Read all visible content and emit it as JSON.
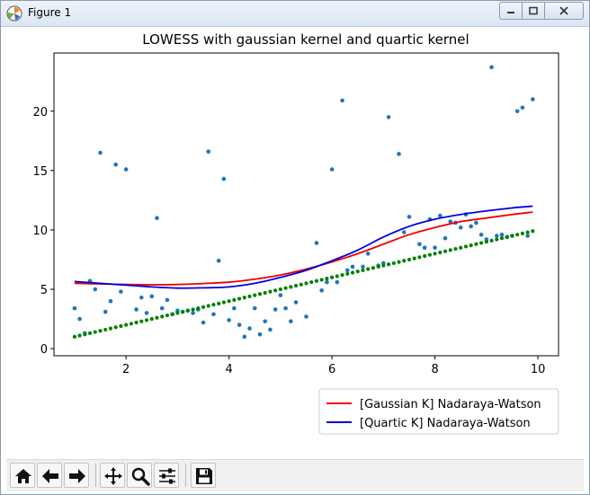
{
  "window": {
    "title": "Figure 1"
  },
  "toolbar": {
    "buttons": [
      {
        "name": "home-icon"
      },
      {
        "name": "back-arrow-icon"
      },
      {
        "name": "forward-arrow-icon"
      },
      {
        "name": "pan-icon"
      },
      {
        "name": "zoom-icon"
      },
      {
        "name": "subplots-config-icon"
      },
      {
        "name": "save-icon"
      }
    ]
  },
  "chart_data": {
    "type": "scatter",
    "title": "LOWESS with gaussian kernel and quartic kernel",
    "xlim": [
      0.6,
      10.4
    ],
    "ylim": [
      -0.6,
      24.9
    ],
    "xticks": [
      2,
      4,
      6,
      8,
      10
    ],
    "yticks": [
      0,
      5,
      10,
      15,
      20
    ],
    "grid": false,
    "legend_placement": "lower-right",
    "colors": {
      "scatter": "#1f77b4",
      "gaussian": "#ee0000",
      "quartic": "#0000dd",
      "linear": "#008000"
    },
    "scatter": [
      [
        1.0,
        3.4
      ],
      [
        1.1,
        2.5
      ],
      [
        1.2,
        1.3
      ],
      [
        1.3,
        5.7
      ],
      [
        1.4,
        5.0
      ],
      [
        1.5,
        16.5
      ],
      [
        1.6,
        3.1
      ],
      [
        1.7,
        4.0
      ],
      [
        1.8,
        15.5
      ],
      [
        1.9,
        4.8
      ],
      [
        2.0,
        15.1
      ],
      [
        2.2,
        3.3
      ],
      [
        2.3,
        4.3
      ],
      [
        2.4,
        3.0
      ],
      [
        2.5,
        4.4
      ],
      [
        2.6,
        11.0
      ],
      [
        2.7,
        3.4
      ],
      [
        2.8,
        4.1
      ],
      [
        2.9,
        2.9
      ],
      [
        3.0,
        3.2
      ],
      [
        3.1,
        3.1
      ],
      [
        3.2,
        3.2
      ],
      [
        3.3,
        3.0
      ],
      [
        3.4,
        3.3
      ],
      [
        3.5,
        2.2
      ],
      [
        3.6,
        16.6
      ],
      [
        3.7,
        2.9
      ],
      [
        3.8,
        7.4
      ],
      [
        3.9,
        14.3
      ],
      [
        4.0,
        2.4
      ],
      [
        4.1,
        3.4
      ],
      [
        4.2,
        2.0
      ],
      [
        4.3,
        1.0
      ],
      [
        4.4,
        1.7
      ],
      [
        4.5,
        3.4
      ],
      [
        4.6,
        1.2
      ],
      [
        4.7,
        2.3
      ],
      [
        4.8,
        1.6
      ],
      [
        4.9,
        3.3
      ],
      [
        5.0,
        4.5
      ],
      [
        5.1,
        3.4
      ],
      [
        5.2,
        2.3
      ],
      [
        5.3,
        3.9
      ],
      [
        5.5,
        2.7
      ],
      [
        5.7,
        8.9
      ],
      [
        5.8,
        4.9
      ],
      [
        5.9,
        5.6
      ],
      [
        6.0,
        15.1
      ],
      [
        6.1,
        5.6
      ],
      [
        6.2,
        20.9
      ],
      [
        6.3,
        6.6
      ],
      [
        6.4,
        6.9
      ],
      [
        6.6,
        6.9
      ],
      [
        6.7,
        8.0
      ],
      [
        6.9,
        7.0
      ],
      [
        7.0,
        7.2
      ],
      [
        7.1,
        19.5
      ],
      [
        7.3,
        16.4
      ],
      [
        7.4,
        9.8
      ],
      [
        7.5,
        11.1
      ],
      [
        7.7,
        8.8
      ],
      [
        7.8,
        8.5
      ],
      [
        7.9,
        10.9
      ],
      [
        8.0,
        8.5
      ],
      [
        8.1,
        11.2
      ],
      [
        8.2,
        9.3
      ],
      [
        8.3,
        10.7
      ],
      [
        8.4,
        10.6
      ],
      [
        8.5,
        10.2
      ],
      [
        8.6,
        11.3
      ],
      [
        8.7,
        10.3
      ],
      [
        8.8,
        10.6
      ],
      [
        8.9,
        9.6
      ],
      [
        9.0,
        9.2
      ],
      [
        9.1,
        23.7
      ],
      [
        9.2,
        9.5
      ],
      [
        9.3,
        9.6
      ],
      [
        9.4,
        9.4
      ],
      [
        9.5,
        9.5
      ],
      [
        9.6,
        20.0
      ],
      [
        9.7,
        20.3
      ],
      [
        9.8,
        9.5
      ],
      [
        9.9,
        21.0
      ]
    ],
    "linear_dots": {
      "x_start": 1.0,
      "x_end": 9.9,
      "y_start": 1.0,
      "y_end": 9.9,
      "count": 90
    },
    "series": [
      {
        "name": "[Gaussian K] Nadaraya-Watson",
        "x": [
          1.0,
          1.5,
          2.0,
          2.5,
          3.0,
          3.5,
          4.0,
          4.5,
          5.0,
          5.5,
          6.0,
          6.5,
          7.0,
          7.5,
          8.0,
          8.5,
          9.0,
          9.5,
          9.9
        ],
        "y": [
          5.5,
          5.45,
          5.4,
          5.38,
          5.4,
          5.48,
          5.6,
          5.85,
          6.2,
          6.7,
          7.3,
          8.0,
          8.8,
          9.6,
          10.2,
          10.7,
          11.0,
          11.3,
          11.5
        ]
      },
      {
        "name": "[Quartic K] Nadaraya-Watson",
        "x": [
          1.0,
          1.5,
          2.0,
          2.5,
          3.0,
          3.5,
          4.0,
          4.5,
          5.0,
          5.5,
          6.0,
          6.5,
          7.0,
          7.5,
          8.0,
          8.5,
          9.0,
          9.5,
          9.9
        ],
        "y": [
          5.65,
          5.5,
          5.35,
          5.2,
          5.1,
          5.12,
          5.2,
          5.5,
          6.0,
          6.6,
          7.4,
          8.3,
          9.4,
          10.3,
          10.9,
          11.3,
          11.6,
          11.85,
          12.0
        ]
      }
    ]
  }
}
